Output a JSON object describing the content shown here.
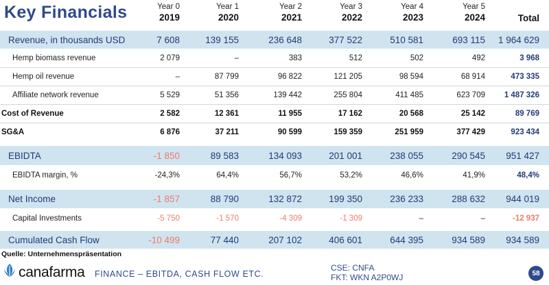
{
  "title": "Key Financials",
  "columns": [
    {
      "label": "Year 0",
      "year": "2019"
    },
    {
      "label": "Year 1",
      "year": "2020"
    },
    {
      "label": "Year 2",
      "year": "2021"
    },
    {
      "label": "Year 3",
      "year": "2022"
    },
    {
      "label": "Year 4",
      "year": "2023"
    },
    {
      "label": "Year 5",
      "year": "2024"
    }
  ],
  "total_label": "Total",
  "rows": {
    "revenue": {
      "label": "Revenue, in thousands USD",
      "v0": "7 608",
      "v1": "139 155",
      "v2": "236 648",
      "v3": "377 522",
      "v4": "510 581",
      "v5": "693 115",
      "total": "1 964 629"
    },
    "hemp_biomass": {
      "label": "Hemp biomass revenue",
      "v0": "2 079",
      "v1": "–",
      "v2": "383",
      "v3": "512",
      "v4": "502",
      "v5": "492",
      "total": "3 968"
    },
    "hemp_oil": {
      "label": "Hemp oil revenue",
      "v0": "–",
      "v1": "87 799",
      "v2": "96 822",
      "v3": "121 205",
      "v4": "98 594",
      "v5": "68 914",
      "total": "473 335"
    },
    "affiliate": {
      "label": "Affiliate network revenue",
      "v0": "5 529",
      "v1": "51 356",
      "v2": "139 442",
      "v3": "255 804",
      "v4": "411 485",
      "v5": "623 709",
      "total": "1 487 326"
    },
    "cost_revenue": {
      "label": "Cost of Revenue",
      "v0": "2 582",
      "v1": "12 361",
      "v2": "11 955",
      "v3": "17 162",
      "v4": "20 568",
      "v5": "25 142",
      "total": "89 769"
    },
    "sga": {
      "label": "SG&A",
      "v0": "6 876",
      "v1": "37 211",
      "v2": "90 599",
      "v3": "159 359",
      "v4": "251 959",
      "v5": "377 429",
      "total": "923 434"
    },
    "ebidta": {
      "label": "EBIDTA",
      "v0": "-1 850",
      "v1": "89 583",
      "v2": "134 093",
      "v3": "201 001",
      "v4": "238 055",
      "v5": "290 545",
      "total": "951 427"
    },
    "ebidta_margin": {
      "label": "EBIDTA margin, %",
      "v0": "-24,3%",
      "v1": "64,4%",
      "v2": "56,7%",
      "v3": "53,2%",
      "v4": "46,6%",
      "v5": "41,9%",
      "total": "48,4%"
    },
    "net_income": {
      "label": "Net Income",
      "v0": "-1 857",
      "v1": "88 790",
      "v2": "132 872",
      "v3": "199 350",
      "v4": "236 233",
      "v5": "288 632",
      "total": "944 019"
    },
    "capex": {
      "label": "Capital Investments",
      "v0": "-5 750",
      "v1": "-1 570",
      "v2": "-4 309",
      "v3": "-1 309",
      "v4": "–",
      "v5": "–",
      "total": "-12 937"
    },
    "cash_flow": {
      "label": "Cumulated Cash Flow",
      "v0": "-10 499",
      "v1": "77 440",
      "v2": "207 102",
      "v3": "406 601",
      "v4": "644 395",
      "v5": "934 589",
      "total": "934 589"
    }
  },
  "source": "Quelle: Unternehmenspräsentation",
  "brand": "canafarma",
  "footer_section": "FINANCE – EBITDA, CASH FLOW ETC.",
  "footer_cse": "CSE: CNFA",
  "footer_fkt": "FKT: WKN A2P0WJ",
  "page_number": "58",
  "colors": {
    "accent": "#2f4a8a",
    "band": "#cfe4ef",
    "negative": "#f07a6a",
    "brand_leaf": "#2a7fc4"
  }
}
